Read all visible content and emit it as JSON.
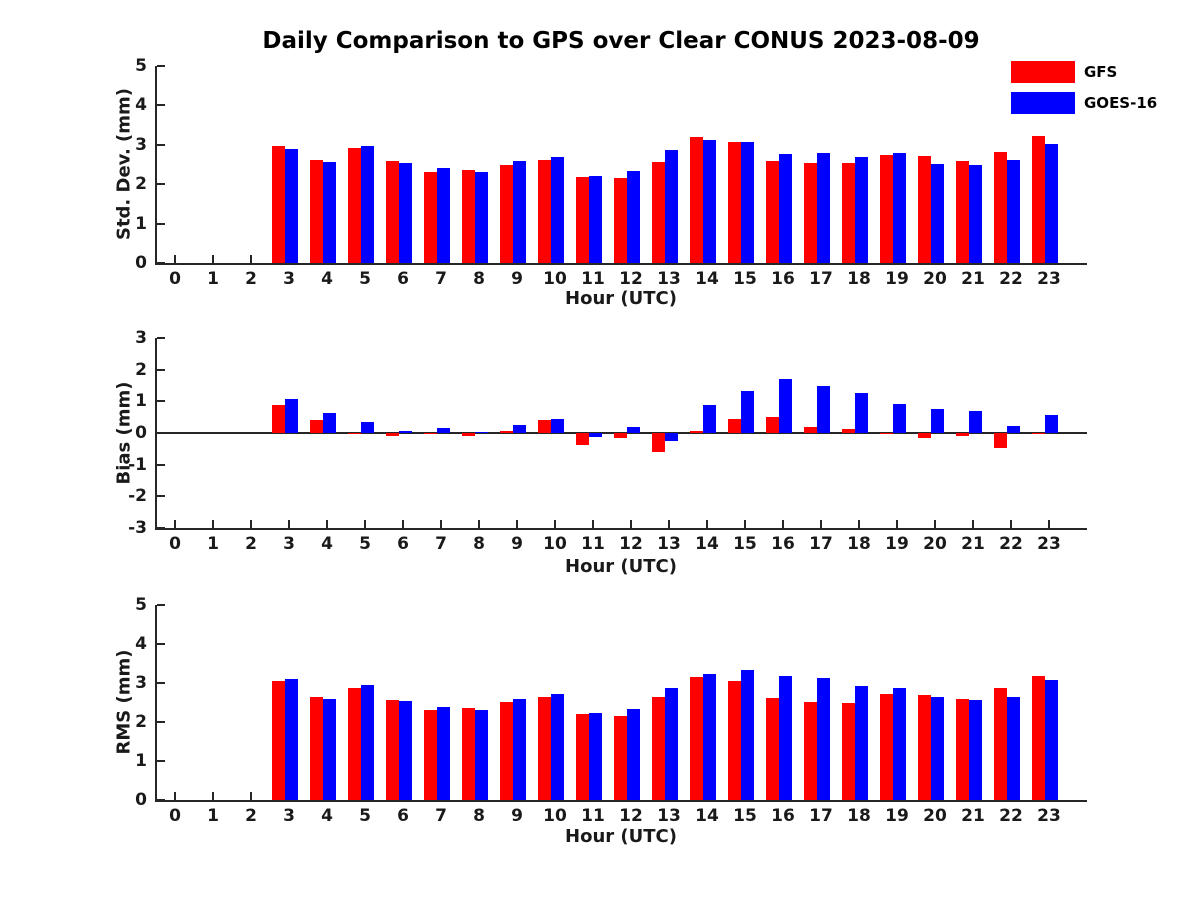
{
  "chart_data": [
    {
      "type": "bar",
      "title": "Daily Comparison to GPS over Clear CONUS 2023-08-09",
      "xlabel": "Hour (UTC)",
      "ylabel": "Std. Dev. (mm)",
      "ylim": [
        0,
        5
      ],
      "yticks": [
        0,
        1,
        2,
        3,
        4,
        5
      ],
      "legend_position": "upper right",
      "grid": false,
      "categories": [
        0,
        1,
        2,
        3,
        4,
        5,
        6,
        7,
        8,
        9,
        10,
        11,
        12,
        13,
        14,
        15,
        16,
        17,
        18,
        19,
        20,
        21,
        22,
        23
      ],
      "series": [
        {
          "name": "GFS",
          "color": "#ff0000",
          "values": [
            null,
            null,
            null,
            2.96,
            2.61,
            2.91,
            2.58,
            2.3,
            2.35,
            2.5,
            2.62,
            2.18,
            2.16,
            2.57,
            3.2,
            3.07,
            2.58,
            2.55,
            2.53,
            2.74,
            2.72,
            2.6,
            2.82,
            3.22
          ]
        },
        {
          "name": "GOES-16",
          "color": "#0000ff",
          "values": [
            null,
            null,
            null,
            2.9,
            2.56,
            2.96,
            2.53,
            2.41,
            2.32,
            2.59,
            2.69,
            2.22,
            2.33,
            2.87,
            3.12,
            3.06,
            2.76,
            2.8,
            2.7,
            2.78,
            2.52,
            2.48,
            2.61,
            3.03
          ]
        }
      ]
    },
    {
      "type": "bar",
      "title": "",
      "xlabel": "Hour (UTC)",
      "ylabel": "Bias (mm)",
      "ylim": [
        -3,
        3
      ],
      "yticks": [
        -3,
        -2,
        -1,
        0,
        1,
        2,
        3
      ],
      "grid": false,
      "zero_line": true,
      "categories": [
        0,
        1,
        2,
        3,
        4,
        5,
        6,
        7,
        8,
        9,
        10,
        11,
        12,
        13,
        14,
        15,
        16,
        17,
        18,
        19,
        20,
        21,
        22,
        23
      ],
      "series": [
        {
          "name": "GFS",
          "color": "#ff0000",
          "values": [
            null,
            null,
            null,
            0.9,
            0.42,
            -0.03,
            -0.11,
            -0.03,
            -0.08,
            0.06,
            0.4,
            -0.38,
            -0.17,
            -0.6,
            0.07,
            0.45,
            0.5,
            0.2,
            0.13,
            -0.03,
            -0.15,
            -0.08,
            -0.48,
            -0.04
          ]
        },
        {
          "name": "GOES-16",
          "color": "#0000ff",
          "values": [
            null,
            null,
            null,
            1.08,
            0.63,
            0.35,
            0.06,
            0.16,
            0.03,
            0.25,
            0.45,
            -0.12,
            0.2,
            -0.26,
            0.88,
            1.34,
            1.72,
            1.5,
            1.25,
            0.93,
            0.76,
            0.7,
            0.21,
            0.56
          ]
        }
      ]
    },
    {
      "type": "bar",
      "title": "",
      "xlabel": "Hour (UTC)",
      "ylabel": "RMS (mm)",
      "ylim": [
        0,
        5
      ],
      "yticks": [
        0,
        1,
        2,
        3,
        4,
        5
      ],
      "grid": false,
      "categories": [
        0,
        1,
        2,
        3,
        4,
        5,
        6,
        7,
        8,
        9,
        10,
        11,
        12,
        13,
        14,
        15,
        16,
        17,
        18,
        19,
        20,
        21,
        22,
        23
      ],
      "series": [
        {
          "name": "GFS",
          "color": "#ff0000",
          "values": [
            null,
            null,
            null,
            3.06,
            2.63,
            2.88,
            2.56,
            2.3,
            2.35,
            2.51,
            2.65,
            2.21,
            2.16,
            2.64,
            3.16,
            3.06,
            2.61,
            2.51,
            2.49,
            2.73,
            2.7,
            2.6,
            2.86,
            3.18
          ]
        },
        {
          "name": "GOES-16",
          "color": "#0000ff",
          "values": [
            null,
            null,
            null,
            3.1,
            2.6,
            2.95,
            2.53,
            2.38,
            2.31,
            2.6,
            2.72,
            2.24,
            2.34,
            2.88,
            3.22,
            3.33,
            3.19,
            3.13,
            2.92,
            2.88,
            2.64,
            2.57,
            2.64,
            3.08
          ]
        }
      ]
    }
  ]
}
